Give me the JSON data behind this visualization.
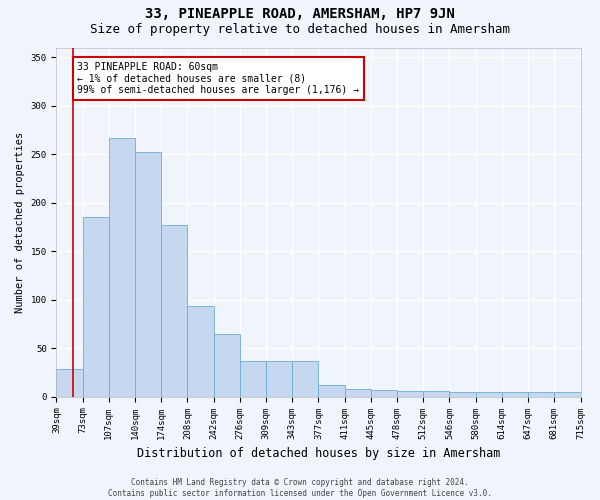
{
  "title": "33, PINEAPPLE ROAD, AMERSHAM, HP7 9JN",
  "subtitle": "Size of property relative to detached houses in Amersham",
  "xlabel": "Distribution of detached houses by size in Amersham",
  "ylabel": "Number of detached properties",
  "bar_labels": [
    "39sqm",
    "73sqm",
    "107sqm",
    "140sqm",
    "174sqm",
    "208sqm",
    "242sqm",
    "276sqm",
    "309sqm",
    "343sqm",
    "377sqm",
    "411sqm",
    "445sqm",
    "478sqm",
    "512sqm",
    "546sqm",
    "580sqm",
    "614sqm",
    "647sqm",
    "681sqm",
    "715sqm"
  ],
  "bar_values": [
    29,
    185,
    267,
    252,
    177,
    94,
    65,
    37,
    37,
    37,
    12,
    8,
    7,
    6,
    6,
    5,
    5,
    5,
    5,
    5
  ],
  "bar_color": "#c5d8f0",
  "bar_edge_color": "#6baed6",
  "annotation_box_text": "33 PINEAPPLE ROAD: 60sqm\n← 1% of detached houses are smaller (8)\n99% of semi-detached houses are larger (1,176) →",
  "annotation_box_color": "#ffffff",
  "annotation_box_edge_color": "#cc0000",
  "ylim": [
    0,
    360
  ],
  "yticks": [
    0,
    50,
    100,
    150,
    200,
    250,
    300,
    350
  ],
  "footnote": "Contains HM Land Registry data © Crown copyright and database right 2024.\nContains public sector information licensed under the Open Government Licence v3.0.",
  "bg_color": "#f0f4fb",
  "plot_bg_color": "#f0f4fb",
  "grid_color": "#ffffff",
  "title_fontsize": 10,
  "subtitle_fontsize": 9,
  "ylabel_fontsize": 7.5,
  "xlabel_fontsize": 8.5,
  "tick_fontsize": 6.5,
  "annotation_fontsize": 7,
  "footnote_fontsize": 5.5
}
